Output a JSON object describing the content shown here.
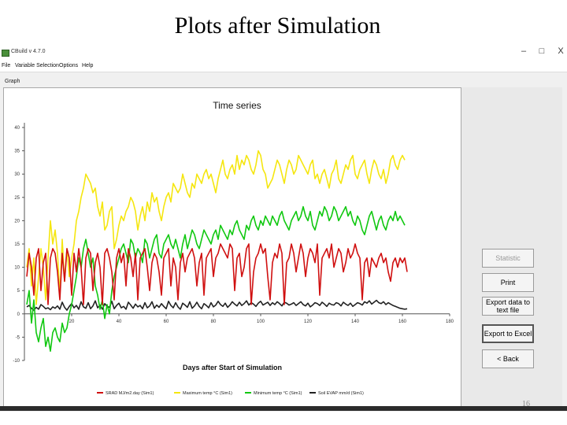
{
  "slide": {
    "title": "Plots after Simulation",
    "page_number": "16"
  },
  "window": {
    "title": "CBuild v 4.7.0",
    "controls": {
      "minimize": "–",
      "maximize": "□",
      "close": "X"
    },
    "menu": [
      "File",
      "Variable Selection",
      "Options",
      "Help"
    ],
    "graph_tab": "Graph"
  },
  "buttons": {
    "statistic": "Statistic",
    "print": "Print",
    "export_text": "Export data to text file",
    "export_excel": "Export to Excel",
    "back": "< Back"
  },
  "colors": {
    "srad": "#d01010",
    "tmax": "#f5e610",
    "tmin": "#11c811",
    "evap": "#222222"
  },
  "chart_data": {
    "type": "line",
    "title": "Time series",
    "xlabel": "Days after Start of Simulation",
    "ylabel": "",
    "xlim": [
      0,
      180
    ],
    "ylim": [
      -10,
      40
    ],
    "x_ticks": [
      20,
      40,
      60,
      80,
      100,
      120,
      140,
      160,
      180
    ],
    "y_ticks": [
      -10,
      -5,
      0,
      5,
      10,
      15,
      20,
      25,
      30,
      35,
      40
    ],
    "legend_position": "bottom",
    "grid": false,
    "x_start": 1,
    "x_step": 1,
    "series": [
      {
        "name": "SRAD MJ/m2.day (Sim1)",
        "color": "#d01010",
        "values": [
          8,
          13,
          10,
          4,
          12,
          14,
          5,
          11,
          13,
          2,
          12,
          14,
          13,
          9,
          3,
          13,
          7,
          14,
          12,
          4,
          13,
          9,
          14,
          10,
          2,
          12,
          14,
          13,
          5,
          11,
          13,
          10,
          2,
          13,
          14,
          12,
          9,
          3,
          12,
          14,
          11,
          13,
          6,
          14,
          12,
          8,
          13,
          3,
          12,
          13,
          14,
          10,
          5,
          11,
          13,
          12,
          9,
          4,
          12,
          13,
          14,
          6,
          12,
          10,
          3,
          11,
          13,
          9,
          12,
          13,
          14,
          12,
          6,
          11,
          13,
          4,
          12,
          13,
          14,
          8,
          12,
          13,
          15,
          14,
          13,
          12,
          15,
          14,
          5,
          12,
          13,
          8,
          10,
          14,
          15,
          2,
          9,
          12,
          13,
          15,
          13,
          14,
          8,
          3,
          11,
          13,
          12,
          15,
          13,
          2,
          11,
          12,
          15,
          13,
          9,
          12,
          15,
          13,
          8,
          12,
          14,
          13,
          11,
          15,
          4,
          12,
          13,
          14,
          12,
          15,
          10,
          12,
          14,
          13,
          9,
          11,
          14,
          12,
          13,
          15,
          13,
          12,
          3,
          11,
          12,
          8,
          12,
          11,
          10,
          12,
          13,
          11,
          12,
          9,
          7,
          11,
          12,
          10,
          12,
          11,
          12,
          9
        ]
      },
      {
        "name": "Maximum temp °C (Sim1)",
        "color": "#f5e610",
        "values": [
          10,
          14,
          6,
          12,
          2,
          8,
          14,
          10,
          3,
          12,
          20,
          15,
          18,
          13,
          4,
          16,
          7,
          14,
          8,
          12,
          15,
          20,
          22,
          25,
          27,
          30,
          29,
          28,
          26,
          27,
          23,
          21,
          24,
          18,
          19,
          22,
          23,
          14,
          16,
          19,
          21,
          20,
          22,
          23,
          25,
          24,
          22,
          18,
          21,
          23,
          20,
          24,
          22,
          26,
          24,
          25,
          22,
          20,
          23,
          25,
          26,
          24,
          28,
          27,
          26,
          27,
          30,
          28,
          26,
          25,
          28,
          27,
          30,
          29,
          28,
          30,
          31,
          29,
          30,
          28,
          26,
          29,
          31,
          33,
          30,
          29,
          31,
          32,
          30,
          34,
          31,
          33,
          32,
          34,
          33,
          31,
          30,
          32,
          35,
          34,
          31,
          30,
          27,
          28,
          29,
          31,
          33,
          32,
          30,
          28,
          31,
          33,
          32,
          30,
          31,
          34,
          33,
          32,
          31,
          30,
          32,
          33,
          29,
          30,
          28,
          30,
          31,
          29,
          27,
          30,
          31,
          33,
          29,
          28,
          30,
          32,
          31,
          33,
          34,
          30,
          29,
          31,
          32,
          33,
          30,
          28,
          31,
          33,
          32,
          30,
          29,
          31,
          28,
          30,
          33,
          34,
          32,
          31,
          33,
          34,
          33
        ]
      },
      {
        "name": "Minimum temp °C (Sim1)",
        "color": "#11c811",
        "values": [
          2,
          5,
          -2,
          3,
          -4,
          -6,
          -3,
          -1,
          -7,
          -5,
          -8,
          -4,
          -3,
          -5,
          -6,
          -2,
          -4,
          -3,
          0,
          2,
          5,
          8,
          12,
          10,
          14,
          16,
          13,
          10,
          12,
          6,
          4,
          1,
          3,
          -1,
          2,
          0,
          5,
          8,
          10,
          12,
          14,
          15,
          13,
          11,
          16,
          15,
          12,
          14,
          13,
          11,
          16,
          15,
          12,
          14,
          16,
          17,
          13,
          12,
          15,
          16,
          17,
          15,
          14,
          16,
          14,
          12,
          15,
          17,
          14,
          16,
          18,
          17,
          15,
          14,
          16,
          18,
          17,
          16,
          15,
          17,
          18,
          16,
          19,
          18,
          17,
          16,
          18,
          17,
          19,
          20,
          18,
          17,
          16,
          19,
          18,
          20,
          21,
          19,
          18,
          20,
          19,
          21,
          20,
          19,
          21,
          20,
          19,
          21,
          22,
          20,
          19,
          18,
          20,
          21,
          22,
          20,
          21,
          23,
          21,
          20,
          22,
          19,
          18,
          20,
          22,
          21,
          23,
          22,
          20,
          21,
          23,
          22,
          20,
          21,
          22,
          23,
          21,
          22,
          20,
          19,
          21,
          20,
          18,
          17,
          19,
          21,
          22,
          20,
          18,
          20,
          21,
          19,
          18,
          20,
          21,
          20,
          22,
          20,
          21,
          20,
          19
        ]
      },
      {
        "name": "Soil EVAP mm/d (Sim1)",
        "color": "#222222",
        "values": [
          1.5,
          1.8,
          1.2,
          0.8,
          1.4,
          1.0,
          2.0,
          1.6,
          1.1,
          1.3,
          0.9,
          1.5,
          1.2,
          1.7,
          1.0,
          2.5,
          1.4,
          0.8,
          1.6,
          2.2,
          1.3,
          1.8,
          1.0,
          2.6,
          1.5,
          1.2,
          2.4,
          1.1,
          1.7,
          2.8,
          1.3,
          1.9,
          1.0,
          2.2,
          1.6,
          1.4,
          2.7,
          1.1,
          1.8,
          2.3,
          1.3,
          1.6,
          1.0,
          2.5,
          1.9,
          1.2,
          2.1,
          1.5,
          1.8,
          1.1,
          2.4,
          1.3,
          1.7,
          2.6,
          1.2,
          1.9,
          1.4,
          2.2,
          1.6,
          1.1,
          2.7,
          1.8,
          1.3,
          2.4,
          1.5,
          1.0,
          2.3,
          1.9,
          1.4,
          2.6,
          1.2,
          1.7,
          2.5,
          1.6,
          1.1,
          2.2,
          1.8,
          1.3,
          2.4,
          1.5,
          1.9,
          2.7,
          2.0,
          1.6,
          2.3,
          1.4,
          1.9,
          2.6,
          2.1,
          1.7,
          2.5,
          1.8,
          2.2,
          2.8,
          1.9,
          2.4,
          2.1,
          1.6,
          2.3,
          2.7,
          1.9,
          2.2,
          2.5,
          1.8,
          2.4,
          2.0,
          2.6,
          2.2,
          1.7,
          2.5,
          2.3,
          1.9,
          2.1,
          2.4,
          1.8,
          2.2,
          2.6,
          2.0,
          1.7,
          2.3,
          1.5,
          1.9,
          2.4,
          2.2,
          1.8,
          2.5,
          2.1,
          1.6,
          2.3,
          2.0,
          1.9,
          2.4,
          2.2,
          1.7,
          2.5,
          2.1,
          1.8,
          2.3,
          1.6,
          2.0,
          2.4,
          2.2,
          1.9,
          2.6,
          2.3,
          2.8,
          2.1,
          2.5,
          2.9,
          2.4,
          2.2,
          2.6,
          2.0,
          2.4,
          2.1,
          1.8,
          1.6,
          1.4,
          1.2,
          1.1,
          1.0,
          1.1
        ]
      }
    ]
  }
}
